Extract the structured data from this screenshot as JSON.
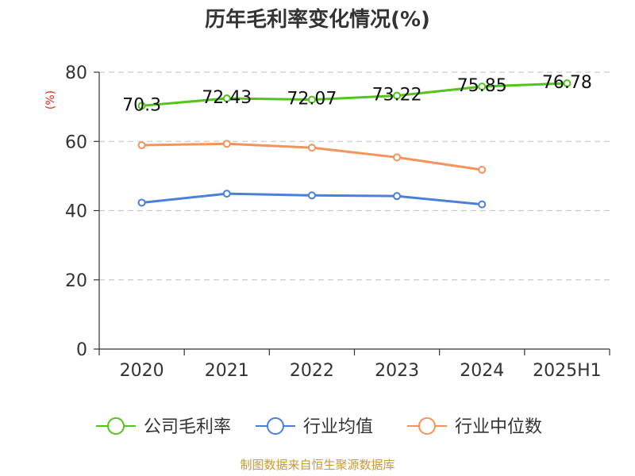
{
  "chart_data": {
    "type": "line",
    "title": "历年毛利率变化情况(%)",
    "ylabel": "(%)",
    "categories": [
      "2020",
      "2021",
      "2022",
      "2023",
      "2024",
      "2025H1"
    ],
    "ylim": [
      0,
      80
    ],
    "yticks": [
      0,
      20,
      40,
      60,
      80
    ],
    "grid": true,
    "legend_position": "bottom",
    "series": [
      {
        "name": "公司毛利率",
        "color": "#52c41a",
        "values": [
          70.3,
          72.43,
          72.07,
          73.22,
          75.85,
          76.78
        ],
        "labels": [
          "70.3",
          "72.43",
          "72.07",
          "73.22",
          "75.85",
          "76.78"
        ]
      },
      {
        "name": "行业均值",
        "color": "#4a7fdc",
        "values": [
          42.3,
          44.9,
          44.4,
          44.2,
          41.8,
          null
        ]
      },
      {
        "name": "行业中位数",
        "color": "#f5935a",
        "values": [
          58.9,
          59.3,
          58.2,
          55.4,
          51.8,
          null
        ]
      }
    ]
  },
  "source": "制图数据来自恒生聚源数据库"
}
